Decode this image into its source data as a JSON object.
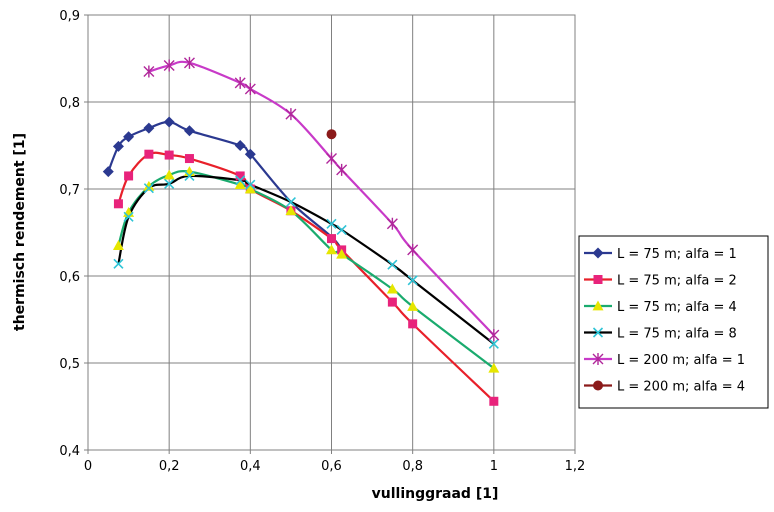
{
  "chart_data": {
    "type": "line",
    "xlabel": "vullinggraad [1]",
    "ylabel": "thermisch rendement [1]",
    "xlim": [
      0,
      1.2
    ],
    "ylim": [
      0.4,
      0.9
    ],
    "x_ticks": [
      "0",
      "0,2",
      "0,4",
      "0,6",
      "0,8",
      "1",
      "1,2"
    ],
    "x_tick_values": [
      0,
      0.2,
      0.4,
      0.6,
      0.8,
      1.0,
      1.2
    ],
    "y_ticks": [
      "0,4",
      "0,5",
      "0,6",
      "0,7",
      "0,8",
      "0,9"
    ],
    "y_tick_values": [
      0.4,
      0.5,
      0.6,
      0.7,
      0.8,
      0.9
    ],
    "grid": true,
    "legend_position": "right",
    "series": [
      {
        "name": "L = 75 m; alfa = 1",
        "color": "#2b3990",
        "marker": "diamond",
        "x": [
          0.05,
          0.075,
          0.1,
          0.15,
          0.2,
          0.25,
          0.375,
          0.4
        ],
        "y": [
          0.72,
          0.749,
          0.76,
          0.77,
          0.777,
          0.767,
          0.75,
          0.74
        ],
        "line_x": [
          0.05,
          0.075,
          0.1,
          0.15,
          0.2,
          0.25,
          0.375,
          0.4,
          0.5,
          0.6,
          0.625
        ],
        "line_y": [
          0.72,
          0.749,
          0.76,
          0.77,
          0.777,
          0.767,
          0.75,
          0.74,
          0.685,
          0.645,
          0.63
        ]
      },
      {
        "name": "L = 75 m; alfa = 2",
        "color": "#e8237b",
        "line_color": "#e8202a",
        "marker": "square",
        "x": [
          0.075,
          0.1,
          0.15,
          0.2,
          0.25,
          0.375,
          0.4,
          0.5,
          0.6,
          0.625,
          0.75,
          0.8,
          1.0
        ],
        "y": [
          0.683,
          0.715,
          0.74,
          0.739,
          0.735,
          0.715,
          0.7,
          0.675,
          0.643,
          0.63,
          0.57,
          0.545,
          0.456
        ]
      },
      {
        "name": "L = 75 m; alfa = 4",
        "color": "#e6e600",
        "line_color": "#1aab6e",
        "marker": "triangle",
        "x": [
          0.075,
          0.1,
          0.15,
          0.2,
          0.25,
          0.375,
          0.4,
          0.5,
          0.6,
          0.625,
          0.75,
          0.8,
          1.0
        ],
        "y": [
          0.635,
          0.673,
          0.703,
          0.716,
          0.72,
          0.705,
          0.7,
          0.675,
          0.63,
          0.625,
          0.585,
          0.565,
          0.494
        ]
      },
      {
        "name": "L = 75 m; alfa = 8",
        "color": "#2ec4d6",
        "line_color": "#000000",
        "marker": "x",
        "x": [
          0.075,
          0.1,
          0.15,
          0.2,
          0.25,
          0.375,
          0.4,
          0.5,
          0.6,
          0.625,
          0.75,
          0.8,
          1.0
        ],
        "y": [
          0.614,
          0.668,
          0.701,
          0.706,
          0.715,
          0.71,
          0.705,
          0.685,
          0.66,
          0.653,
          0.613,
          0.595,
          0.522
        ]
      },
      {
        "name": "L = 200 m; alfa = 1",
        "color": "#b0279a",
        "line_color": "#c83ac8",
        "marker": "star",
        "x": [
          0.15,
          0.2,
          0.25,
          0.375,
          0.4,
          0.5,
          0.6,
          0.625,
          0.75,
          0.8,
          1.0
        ],
        "y": [
          0.835,
          0.842,
          0.845,
          0.822,
          0.815,
          0.786,
          0.735,
          0.722,
          0.66,
          0.63,
          0.532
        ]
      },
      {
        "name": "L = 200 m; alfa = 4",
        "color": "#8b1a1a",
        "marker": "circle",
        "x": [
          0.6
        ],
        "y": [
          0.763
        ]
      }
    ]
  }
}
